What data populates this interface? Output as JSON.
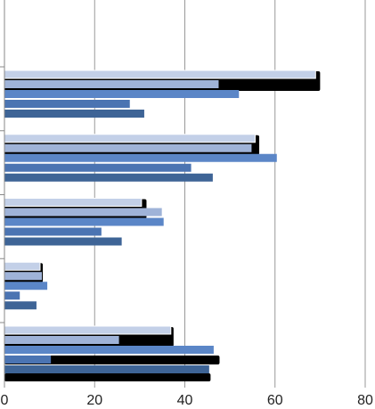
{
  "chart_data": {
    "type": "bar",
    "orientation": "horizontal",
    "categories": [
      null,
      null,
      null,
      null,
      null
    ],
    "series": [
      {
        "color": "#c3d0e8",
        "values": [
          69,
          55.6,
          30.4,
          7.9,
          36.9
        ]
      },
      {
        "color": "#9fb3d8",
        "values": [
          47.5,
          54.8,
          34.9,
          8.3,
          25.4
        ]
      },
      {
        "color": "#5b86c7",
        "values": [
          52,
          60.4,
          35.3,
          9.5,
          46.4
        ]
      },
      {
        "color": "#4b74b2",
        "values": [
          27.8,
          41.4,
          21.5,
          3.4,
          10.3
        ]
      },
      {
        "color": "#3e6496",
        "values": [
          31,
          46.2,
          26,
          7.1,
          45.4
        ]
      },
      {
        "color": "#000000",
        "values": [
          70,
          56.5,
          31.5,
          8.5,
          37.5
        ]
      },
      {
        "color": "#000000",
        "values": [
          null,
          null,
          null,
          null,
          47.7
        ]
      },
      {
        "color": "#000000",
        "values": [
          null,
          null,
          null,
          null,
          46.5
        ]
      }
    ],
    "xlim": [
      0,
      80
    ],
    "xticks": [
      0,
      20,
      40,
      60,
      80
    ],
    "grid": true
  }
}
